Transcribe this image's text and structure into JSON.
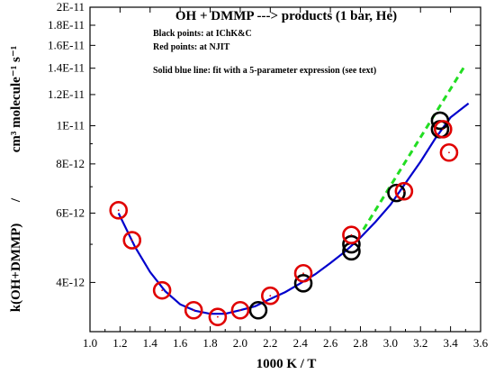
{
  "chart_data": {
    "type": "scatter",
    "title": "OH  +  DMMP  --->  products (1 bar, He)",
    "annotations": [
      "Black points: at IChK&C",
      "Red points: at NJIT",
      "Solid blue line: fit with a 5-parameter expression (see text)"
    ],
    "xlabel": "1000 K  /   T",
    "ylabel_left": "k(OH+DMMP)",
    "ylabel_sep": "/",
    "ylabel_units": "cm³ molecule⁻¹ s⁻¹",
    "xlim": [
      1.0,
      3.6
    ],
    "ylim": [
      3e-12,
      2e-11
    ],
    "yscale": "log",
    "x_ticks": [
      "1.0",
      "1.2",
      "1.4",
      "1.6",
      "1.8",
      "2.0",
      "2.2",
      "2.4",
      "2.6",
      "2.8",
      "3.0",
      "3.2",
      "3.4",
      "3.6"
    ],
    "y_ticks": [
      {
        "v": 4e-12,
        "label": "4E-12"
      },
      {
        "v": 6e-12,
        "label": "6E-12"
      },
      {
        "v": 8e-12,
        "label": "8E-12"
      },
      {
        "v": 1e-11,
        "label": "1E-11"
      },
      {
        "v": 1.2e-11,
        "label": "1.2E-11"
      },
      {
        "v": 1.4e-11,
        "label": "1.4E-11"
      },
      {
        "v": 1.6e-11,
        "label": "1.6E-11"
      },
      {
        "v": 1.8e-11,
        "label": "1.8E-11"
      },
      {
        "v": 2e-11,
        "label": "2E-11"
      }
    ],
    "series": [
      {
        "color": "#000000",
        "marker": "open-circle",
        "points": [
          {
            "x": 2.12,
            "y": 3.4e-12
          },
          {
            "x": 2.42,
            "y": 3.98e-12
          },
          {
            "x": 2.74,
            "y": 4.8e-12
          },
          {
            "x": 2.74,
            "y": 5e-12
          },
          {
            "x": 3.04,
            "y": 6.75e-12
          },
          {
            "x": 3.33,
            "y": 9.8e-12
          },
          {
            "x": 3.33,
            "y": 1.03e-11
          }
        ]
      },
      {
        "color": "#e00000",
        "marker": "open-circle",
        "points": [
          {
            "x": 1.19,
            "y": 6.1e-12
          },
          {
            "x": 1.28,
            "y": 5.12e-12
          },
          {
            "x": 1.48,
            "y": 3.82e-12
          },
          {
            "x": 1.69,
            "y": 3.4e-12
          },
          {
            "x": 1.85,
            "y": 3.27e-12
          },
          {
            "x": 2.0,
            "y": 3.4e-12
          },
          {
            "x": 2.2,
            "y": 3.7e-12
          },
          {
            "x": 2.42,
            "y": 4.22e-12
          },
          {
            "x": 2.74,
            "y": 5.28e-12
          },
          {
            "x": 3.09,
            "y": 6.82e-12
          },
          {
            "x": 3.35,
            "y": 9.8e-12
          },
          {
            "x": 3.39,
            "y": 8.55e-12
          }
        ]
      },
      {
        "type": "line",
        "color": "#0000cc",
        "style": "solid",
        "points": [
          {
            "x": 1.19,
            "y": 6e-12
          },
          {
            "x": 1.3,
            "y": 4.92e-12
          },
          {
            "x": 1.4,
            "y": 4.25e-12
          },
          {
            "x": 1.5,
            "y": 3.8e-12
          },
          {
            "x": 1.6,
            "y": 3.52e-12
          },
          {
            "x": 1.7,
            "y": 3.39e-12
          },
          {
            "x": 1.8,
            "y": 3.33e-12
          },
          {
            "x": 1.9,
            "y": 3.33e-12
          },
          {
            "x": 2.0,
            "y": 3.4e-12
          },
          {
            "x": 2.1,
            "y": 3.48e-12
          },
          {
            "x": 2.2,
            "y": 3.63e-12
          },
          {
            "x": 2.3,
            "y": 3.78e-12
          },
          {
            "x": 2.4,
            "y": 3.98e-12
          },
          {
            "x": 2.5,
            "y": 4.2e-12
          },
          {
            "x": 2.6,
            "y": 4.48e-12
          },
          {
            "x": 2.7,
            "y": 4.8e-12
          },
          {
            "x": 2.8,
            "y": 5.2e-12
          },
          {
            "x": 2.9,
            "y": 5.7e-12
          },
          {
            "x": 3.0,
            "y": 6.3e-12
          },
          {
            "x": 3.1,
            "y": 7.15e-12
          },
          {
            "x": 3.2,
            "y": 8.1e-12
          },
          {
            "x": 3.3,
            "y": 9.3e-12
          },
          {
            "x": 3.4,
            "y": 1.05e-11
          },
          {
            "x": 3.52,
            "y": 1.14e-11
          }
        ]
      },
      {
        "type": "line",
        "color": "#22dd22",
        "style": "dashed",
        "points": [
          {
            "x": 2.82,
            "y": 5.45e-12
          },
          {
            "x": 3.5,
            "y": 1.43e-11
          }
        ]
      }
    ]
  }
}
